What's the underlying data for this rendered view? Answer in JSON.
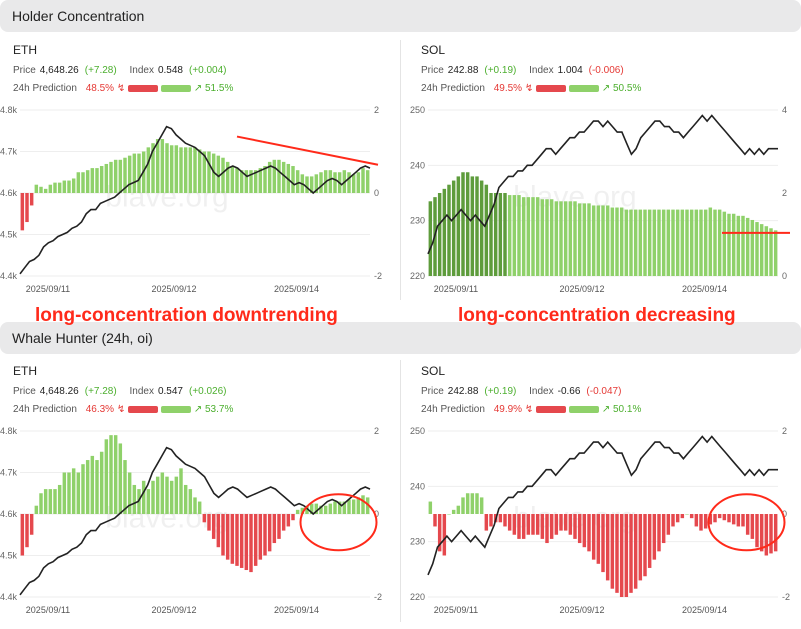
{
  "sections": {
    "holder": "Holder Concentration",
    "whale": "Whale Hunter (24h, oi)"
  },
  "annotations": {
    "left": "long-concentration downtrending",
    "right": "long-concentration decreasing"
  },
  "watermark": "blave.org",
  "colors": {
    "up": "#8fd16a",
    "up_dark": "#5e9c3c",
    "down": "#e5484d",
    "price": "#222222",
    "annotation": "#ff2a1a"
  },
  "panels": [
    {
      "id": "holder-eth",
      "coin": "ETH",
      "price_label": "Price",
      "price": "4,648.26",
      "price_change": "(+7.28)",
      "index_label": "Index",
      "index": "0.548",
      "index_change": "(+0.004)",
      "pred_label": "24h Prediction",
      "pred_down": "48.5%",
      "pred_up": "51.5%",
      "icon_down": "trend-down-icon",
      "icon_up": "trend-up-icon",
      "chart_data": {
        "type": "bar",
        "y_left_ticks": [
          "4.8k",
          "4.7k",
          "4.6k",
          "4.5k",
          "4.4k"
        ],
        "y_left_range": [
          4400,
          4800
        ],
        "y_right_ticks": [
          "2",
          "0",
          "-2"
        ],
        "y_right_range": [
          -2,
          2
        ],
        "x_ticks": [
          "2025/09/11",
          "2025/09/12",
          "2025/09/14"
        ],
        "x_tick_pos": [
          0.08,
          0.44,
          0.79
        ],
        "zero_at": 0.5,
        "bars": [
          -0.9,
          -0.7,
          -0.3,
          0.2,
          0.15,
          0.1,
          0.2,
          0.25,
          0.25,
          0.3,
          0.3,
          0.35,
          0.5,
          0.5,
          0.55,
          0.6,
          0.6,
          0.65,
          0.7,
          0.75,
          0.8,
          0.8,
          0.85,
          0.9,
          0.95,
          0.95,
          1.0,
          1.1,
          1.2,
          1.3,
          1.3,
          1.2,
          1.15,
          1.15,
          1.1,
          1.1,
          1.1,
          1.1,
          1.05,
          1.0,
          1.0,
          0.95,
          0.9,
          0.85,
          0.75,
          0.65,
          0.6,
          0.55,
          0.55,
          0.55,
          0.55,
          0.6,
          0.65,
          0.75,
          0.8,
          0.8,
          0.75,
          0.7,
          0.65,
          0.55,
          0.45,
          0.4,
          0.4,
          0.45,
          0.5,
          0.55,
          0.55,
          0.5,
          0.5,
          0.55,
          0.5,
          0.45,
          0.5,
          0.6,
          0.55
        ],
        "price": [
          4405,
          4420,
          4435,
          4440,
          4450,
          4470,
          4480,
          4485,
          4495,
          4500,
          4505,
          4515,
          4520,
          4530,
          4550,
          4560,
          4560,
          4575,
          4580,
          4585,
          4590,
          4600,
          4610,
          4620,
          4625,
          4630,
          4650,
          4670,
          4700,
          4720,
          4740,
          4760,
          4755,
          4740,
          4730,
          4720,
          4715,
          4710,
          4700,
          4690,
          4670,
          4650,
          4640,
          4650,
          4660,
          4665,
          4660,
          4650,
          4640,
          4645,
          4650,
          4655,
          4660,
          4665,
          4660,
          4650,
          4640,
          4630,
          4620,
          4625,
          4620,
          4610,
          4600,
          4610,
          4620,
          4630,
          4635,
          4630,
          4620,
          4630,
          4640,
          4650,
          4660,
          4665,
          4660
        ],
        "trendline": "down"
      }
    },
    {
      "id": "holder-sol",
      "coin": "SOL",
      "price_label": "Price",
      "price": "242.88",
      "price_change": "(+0.19)",
      "index_label": "Index",
      "index": "1.004",
      "index_change": "(-0.006)",
      "pred_label": "24h Prediction",
      "pred_down": "49.5%",
      "pred_up": "50.5%",
      "icon_down": "trend-down-icon",
      "icon_up": "trend-up-icon",
      "chart_data": {
        "type": "bar",
        "y_left_ticks": [
          "250",
          "240",
          "230",
          "220"
        ],
        "y_left_range": [
          220,
          250
        ],
        "y_right_ticks": [
          "4",
          "2",
          "0"
        ],
        "y_right_range": [
          0,
          4
        ],
        "x_ticks": [
          "2025/09/11",
          "2025/09/12",
          "2025/09/14"
        ],
        "x_tick_pos": [
          0.08,
          0.44,
          0.79
        ],
        "zero_at": 1.0,
        "bars": [
          1.8,
          1.9,
          2.0,
          2.1,
          2.2,
          2.3,
          2.4,
          2.5,
          2.5,
          2.4,
          2.4,
          2.3,
          2.2,
          2.0,
          2.0,
          2.0,
          2.0,
          1.95,
          1.95,
          1.95,
          1.9,
          1.9,
          1.9,
          1.9,
          1.85,
          1.85,
          1.85,
          1.8,
          1.8,
          1.8,
          1.8,
          1.8,
          1.75,
          1.75,
          1.75,
          1.7,
          1.7,
          1.7,
          1.7,
          1.65,
          1.65,
          1.65,
          1.6,
          1.6,
          1.6,
          1.6,
          1.6,
          1.6,
          1.6,
          1.6,
          1.6,
          1.6,
          1.6,
          1.6,
          1.6,
          1.6,
          1.6,
          1.6,
          1.6,
          1.6,
          1.65,
          1.6,
          1.6,
          1.55,
          1.5,
          1.5,
          1.45,
          1.45,
          1.4,
          1.35,
          1.3,
          1.25,
          1.2,
          1.15,
          1.1
        ],
        "dark_bars_count": 17,
        "price": [
          224,
          226,
          229,
          230,
          231,
          230,
          231,
          232,
          231,
          230,
          231,
          230,
          229,
          231,
          233,
          236,
          237,
          238,
          238,
          239,
          239,
          240,
          240,
          241,
          242,
          243,
          243,
          242,
          243,
          244,
          245,
          245,
          246,
          246,
          247,
          248,
          248,
          247,
          248,
          247,
          246,
          246,
          244,
          242,
          243,
          245,
          246,
          247,
          248,
          248,
          247,
          247,
          246,
          246,
          245,
          246,
          247,
          248,
          249,
          248,
          249,
          248,
          247,
          246,
          245,
          244,
          243,
          242,
          243,
          242,
          243,
          242,
          243,
          243,
          243
        ],
        "trendline": "flat"
      }
    },
    {
      "id": "whale-eth",
      "coin": "ETH",
      "price_label": "Price",
      "price": "4,648.26",
      "price_change": "(+7.28)",
      "index_label": "Index",
      "index": "0.547",
      "index_change": "(+0.026)",
      "pred_label": "24h Prediction",
      "pred_down": "46.3%",
      "pred_up": "53.7%",
      "icon_down": "trend-down-icon",
      "icon_up": "trend-up-icon",
      "chart_data": {
        "type": "bar",
        "y_left_ticks": [
          "4.8k",
          "4.7k",
          "4.6k",
          "4.5k",
          "4.4k"
        ],
        "y_left_range": [
          4400,
          4800
        ],
        "y_right_ticks": [
          "2",
          "0",
          "-2"
        ],
        "y_right_range": [
          -2,
          2
        ],
        "x_ticks": [
          "2025/09/11",
          "2025/09/12",
          "2025/09/14"
        ],
        "x_tick_pos": [
          0.08,
          0.44,
          0.79
        ],
        "zero_at": 0.5,
        "bars": [
          -1.0,
          -0.8,
          -0.5,
          0.2,
          0.5,
          0.6,
          0.6,
          0.6,
          0.7,
          1.0,
          1.0,
          1.1,
          1.0,
          1.2,
          1.3,
          1.4,
          1.3,
          1.5,
          1.8,
          1.9,
          1.9,
          1.7,
          1.3,
          1.0,
          0.7,
          0.6,
          0.8,
          0.6,
          0.8,
          0.9,
          1.0,
          0.9,
          0.8,
          0.9,
          1.1,
          0.7,
          0.6,
          0.4,
          0.3,
          -0.2,
          -0.4,
          -0.6,
          -0.8,
          -1.0,
          -1.1,
          -1.2,
          -1.25,
          -1.3,
          -1.35,
          -1.4,
          -1.25,
          -1.1,
          -1.0,
          -0.9,
          -0.7,
          -0.6,
          -0.4,
          -0.3,
          -0.15,
          0.1,
          0.15,
          0.2,
          0.25,
          0.25,
          0.2,
          0.2,
          0.25,
          0.3,
          0.3,
          0.3,
          0.35,
          0.35,
          0.4,
          0.45,
          0.4
        ],
        "price": [
          4405,
          4420,
          4435,
          4440,
          4450,
          4470,
          4480,
          4485,
          4495,
          4500,
          4505,
          4515,
          4520,
          4530,
          4550,
          4560,
          4560,
          4575,
          4580,
          4585,
          4590,
          4600,
          4610,
          4620,
          4625,
          4630,
          4650,
          4670,
          4700,
          4720,
          4740,
          4760,
          4755,
          4740,
          4730,
          4720,
          4715,
          4710,
          4700,
          4690,
          4670,
          4650,
          4640,
          4650,
          4660,
          4665,
          4660,
          4650,
          4640,
          4645,
          4650,
          4655,
          4660,
          4665,
          4660,
          4650,
          4640,
          4630,
          4620,
          4625,
          4620,
          4610,
          4600,
          4610,
          4620,
          4630,
          4635,
          4630,
          4620,
          4630,
          4640,
          4650,
          4660,
          4665,
          4660
        ],
        "highlight": "ellipse-right"
      }
    },
    {
      "id": "whale-sol",
      "coin": "SOL",
      "price_label": "Price",
      "price": "242.88",
      "price_change": "(+0.19)",
      "index_label": "Index",
      "index": "-0.66",
      "index_change": "(-0.047)",
      "pred_label": "24h Prediction",
      "pred_down": "49.9%",
      "pred_up": "50.1%",
      "icon_down": "trend-down-icon",
      "icon_up": "trend-up-icon",
      "chart_data": {
        "type": "bar",
        "y_left_ticks": [
          "250",
          "240",
          "230",
          "220"
        ],
        "y_left_range": [
          220,
          250
        ],
        "y_right_ticks": [
          "2",
          "0",
          "-2"
        ],
        "y_right_range": [
          -2,
          2
        ],
        "x_ticks": [
          "2025/09/11",
          "2025/09/12",
          "2025/09/14"
        ],
        "x_tick_pos": [
          0.08,
          0.44,
          0.79
        ],
        "zero_at": 0.5,
        "bars": [
          0.3,
          -0.3,
          -0.9,
          -1.0,
          0,
          0.1,
          0.2,
          0.4,
          0.5,
          0.5,
          0.5,
          0.4,
          -0.4,
          -0.3,
          -0.2,
          -0.2,
          -0.3,
          -0.4,
          -0.5,
          -0.6,
          -0.6,
          -0.5,
          -0.5,
          -0.5,
          -0.6,
          -0.7,
          -0.6,
          -0.5,
          -0.4,
          -0.4,
          -0.5,
          -0.6,
          -0.7,
          -0.8,
          -0.9,
          -1.1,
          -1.2,
          -1.4,
          -1.6,
          -1.8,
          -1.9,
          -2.0,
          -2.0,
          -1.9,
          -1.8,
          -1.6,
          -1.5,
          -1.3,
          -1.1,
          -0.9,
          -0.7,
          -0.5,
          -0.3,
          -0.2,
          -0.1,
          0,
          -0.1,
          -0.3,
          -0.4,
          -0.35,
          -0.25,
          -0.2,
          -0.1,
          -0.15,
          -0.2,
          -0.25,
          -0.3,
          -0.3,
          -0.5,
          -0.6,
          -0.8,
          -0.9,
          -1.0,
          -0.95,
          -0.9
        ],
        "price": [
          224,
          226,
          229,
          230,
          231,
          230,
          231,
          232,
          231,
          230,
          231,
          230,
          229,
          231,
          233,
          236,
          237,
          238,
          238,
          239,
          239,
          240,
          240,
          241,
          242,
          243,
          243,
          242,
          243,
          244,
          245,
          245,
          246,
          246,
          247,
          248,
          248,
          247,
          248,
          247,
          246,
          246,
          244,
          242,
          243,
          245,
          246,
          247,
          248,
          248,
          247,
          247,
          246,
          246,
          245,
          246,
          247,
          248,
          249,
          248,
          249,
          248,
          247,
          246,
          245,
          244,
          243,
          242,
          243,
          242,
          243,
          242,
          243,
          243,
          243
        ],
        "highlight": "ellipse-right"
      }
    }
  ]
}
